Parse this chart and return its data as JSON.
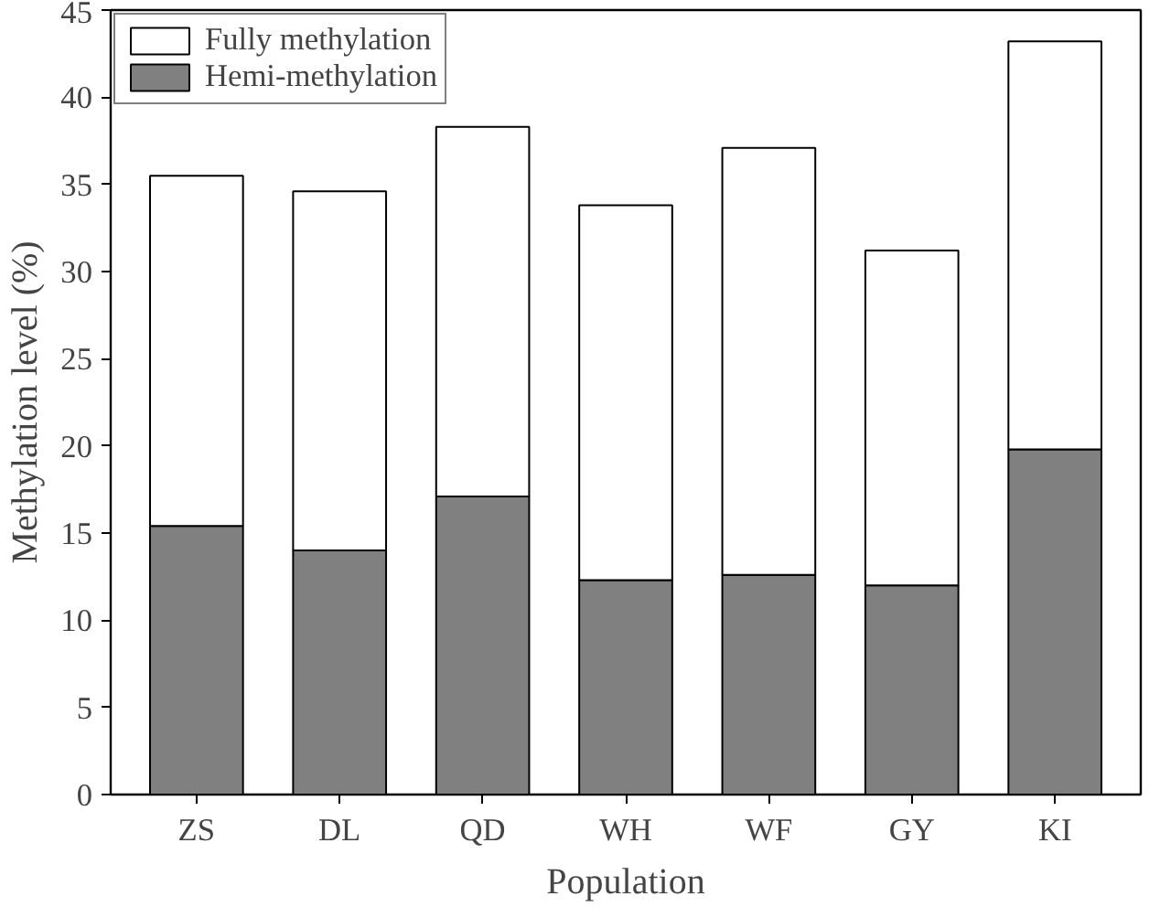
{
  "chart_data": {
    "type": "bar",
    "stacked": true,
    "xlabel": "Population",
    "ylabel": "Methylation level (%)",
    "categories": [
      "ZS",
      "DL",
      "QD",
      "WH",
      "WF",
      "GY",
      "KI"
    ],
    "series": [
      {
        "name": "Hemi-methylation",
        "color": "#808080",
        "values": [
          15.4,
          14.0,
          17.1,
          12.3,
          12.6,
          12.0,
          19.8
        ]
      },
      {
        "name": "Fully methylation",
        "color": "#ffffff",
        "values": [
          20.1,
          20.6,
          21.2,
          21.5,
          24.5,
          19.2,
          23.4
        ]
      }
    ],
    "ylim": [
      0,
      45
    ],
    "yticks": [
      0,
      5,
      10,
      15,
      20,
      25,
      30,
      35,
      40,
      45
    ],
    "grid": false,
    "legend": "top left"
  }
}
